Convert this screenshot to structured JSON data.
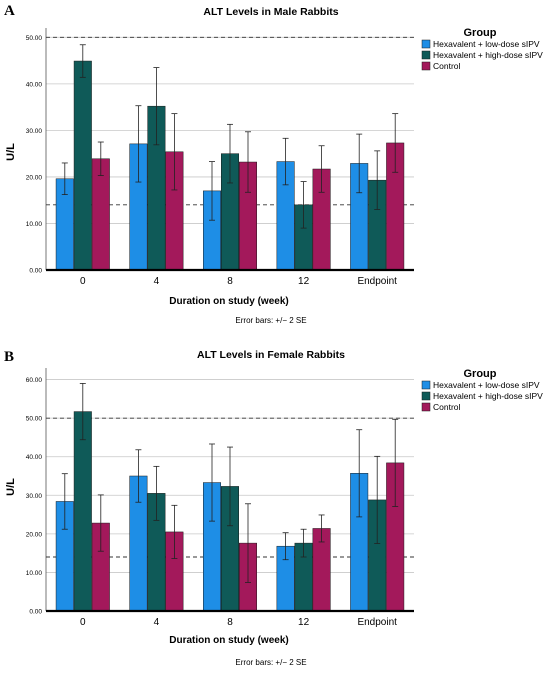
{
  "figure_note": "Error bars: +/− 2 SE",
  "legend": {
    "title": "Group",
    "entries": [
      {
        "label": "Hexavalent + low-dose sIPV",
        "color": "#1e8ee6"
      },
      {
        "label": "Hexavalent + high-dose sIPV",
        "color": "#0f5a58"
      },
      {
        "label": "Control",
        "color": "#a3195b"
      }
    ]
  },
  "chart_data": [
    {
      "panel": "A",
      "type": "bar",
      "title": "ALT Levels in Male Rabbits",
      "xlabel": "Duration on study (week)",
      "ylabel": "U/L",
      "ylim": [
        0,
        52
      ],
      "yticks": [
        "0.00",
        "10.00",
        "20.00",
        "30.00",
        "40.00",
        "50.00"
      ],
      "reference_lines": [
        50,
        14
      ],
      "categories": [
        "0",
        "4",
        "8",
        "12",
        "Endpoint"
      ],
      "series": [
        {
          "name": "Hexavalent + low-dose sIPV",
          "values": [
            19.6,
            27.1,
            17.0,
            23.3,
            22.9
          ],
          "error": [
            3.4,
            8.2,
            6.3,
            5.0,
            6.3
          ]
        },
        {
          "name": "Hexavalent + high-dose sIPV",
          "values": [
            44.9,
            35.2,
            25.0,
            14.0,
            19.3
          ],
          "error": [
            3.5,
            8.3,
            6.3,
            5.0,
            6.3
          ]
        },
        {
          "name": "Control",
          "values": [
            23.9,
            25.4,
            23.2,
            21.7,
            27.3
          ],
          "error": [
            3.6,
            8.2,
            6.5,
            5.0,
            6.3
          ]
        }
      ],
      "grid": "horizontal"
    },
    {
      "panel": "B",
      "type": "bar",
      "title": "ALT Levels in Female Rabbits",
      "xlabel": "Duration on study (week)",
      "ylabel": "U/L",
      "ylim": [
        0,
        63
      ],
      "yticks": [
        "0.00",
        "10.00",
        "20.00",
        "30.00",
        "40.00",
        "50.00",
        "60.00"
      ],
      "reference_lines": [
        50,
        14
      ],
      "categories": [
        "0",
        "4",
        "8",
        "12",
        "Endpoint"
      ],
      "series": [
        {
          "name": "Hexavalent + low-dose sIPV",
          "values": [
            28.4,
            35.0,
            33.3,
            16.8,
            35.7
          ],
          "error": [
            7.2,
            6.8,
            10.0,
            3.5,
            11.3
          ]
        },
        {
          "name": "Hexavalent + high-dose sIPV",
          "values": [
            51.7,
            30.5,
            32.3,
            17.6,
            28.8
          ],
          "error": [
            7.3,
            7.0,
            10.2,
            3.6,
            11.3
          ]
        },
        {
          "name": "Control",
          "values": [
            22.8,
            20.5,
            17.6,
            21.4,
            38.4
          ],
          "error": [
            7.3,
            6.9,
            10.2,
            3.5,
            11.3
          ]
        }
      ],
      "grid": "horizontal"
    }
  ]
}
